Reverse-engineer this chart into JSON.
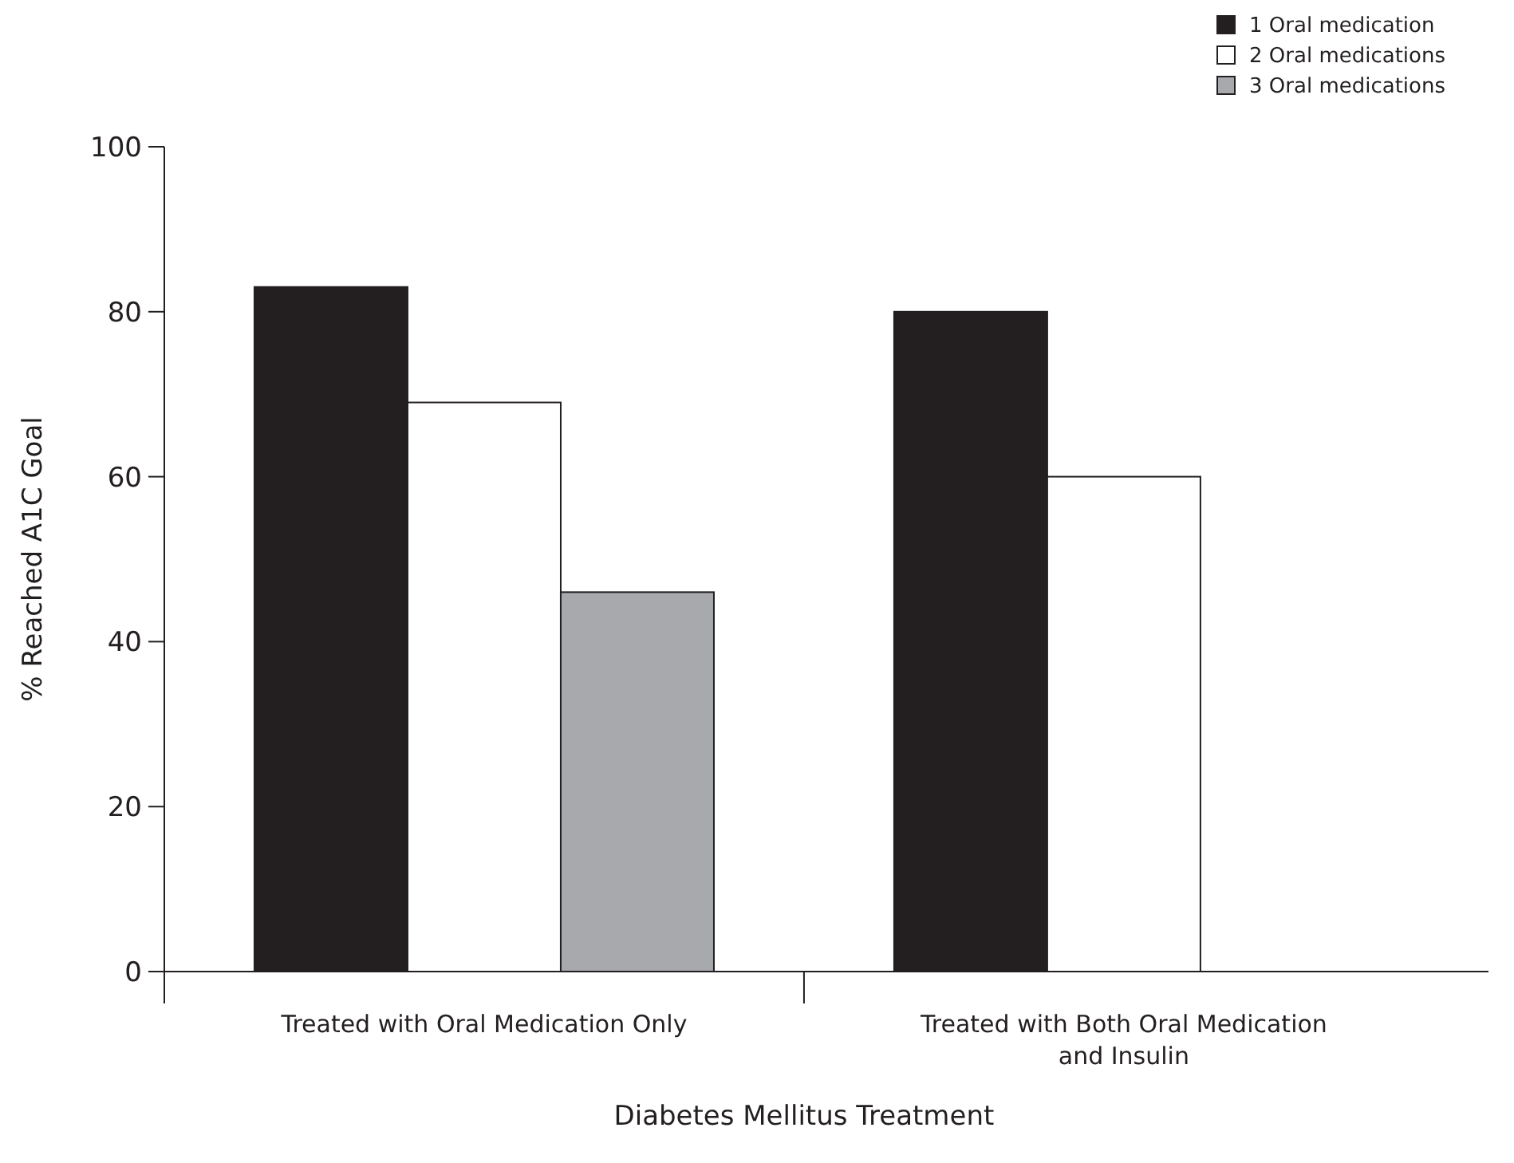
{
  "chart_data": {
    "type": "bar",
    "xlabel": "Diabetes Mellitus Treatment",
    "ylabel": "% Reached A1C Goal",
    "categories": [
      "Treated with Oral Medication Only",
      "Treated with Both Oral Medication and Insulin"
    ],
    "series": [
      {
        "name": "1 Oral medication",
        "color": "#231f20",
        "values": [
          83,
          80
        ]
      },
      {
        "name": "2 Oral medications",
        "color": "#ffffff",
        "values": [
          69,
          60
        ]
      },
      {
        "name": "3 Oral medications",
        "color": "#a7a9ac",
        "values": [
          46,
          null
        ]
      }
    ],
    "ylim": [
      0,
      100
    ],
    "yticks": [
      0,
      20,
      40,
      60,
      80,
      100
    ],
    "grid": false,
    "legend": "top right"
  }
}
